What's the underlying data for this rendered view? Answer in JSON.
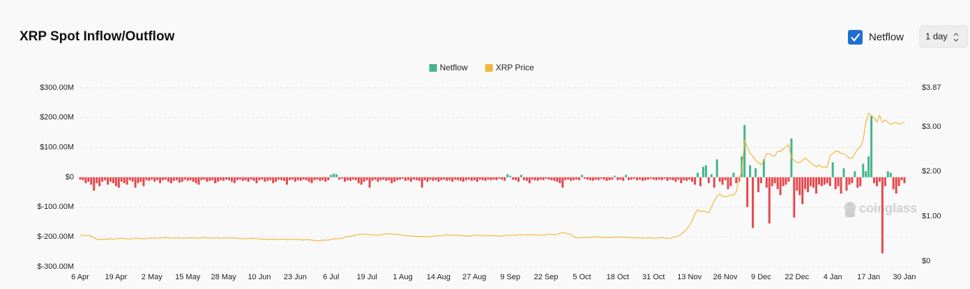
{
  "controls": {
    "checkbox_label": "Netflow",
    "interval": "1 day"
  },
  "watermark": "coinglass",
  "chart_data": {
    "type": "bar",
    "title": "XRP Spot Inflow/Outflow",
    "legend": "top",
    "grid": true,
    "categories": [
      "6 Apr",
      null,
      null,
      null,
      null,
      null,
      null,
      null,
      null,
      null,
      null,
      null,
      null,
      "19 Apr",
      null,
      null,
      null,
      null,
      null,
      null,
      null,
      null,
      null,
      null,
      null,
      null,
      "2 May",
      null,
      null,
      null,
      null,
      null,
      null,
      null,
      null,
      null,
      null,
      null,
      null,
      "15 May",
      null,
      null,
      null,
      null,
      null,
      null,
      null,
      null,
      null,
      null,
      null,
      null,
      "28 May",
      null,
      null,
      null,
      null,
      null,
      null,
      null,
      null,
      null,
      null,
      null,
      null,
      "10 Jun",
      null,
      null,
      null,
      null,
      null,
      null,
      null,
      null,
      null,
      null,
      null,
      null,
      "23 Jun",
      null,
      null,
      null,
      null,
      null,
      null,
      null,
      null,
      null,
      null,
      null,
      null,
      "6 Jul",
      null,
      null,
      null,
      null,
      null,
      null,
      null,
      null,
      null,
      null,
      null,
      null,
      "19 Jul",
      null,
      null,
      null,
      null,
      null,
      null,
      null,
      null,
      null,
      null,
      null,
      null,
      "1 Aug",
      null,
      null,
      null,
      null,
      null,
      null,
      null,
      null,
      null,
      null,
      null,
      null,
      "14 Aug",
      null,
      null,
      null,
      null,
      null,
      null,
      null,
      null,
      null,
      null,
      null,
      null,
      "27 Aug",
      null,
      null,
      null,
      null,
      null,
      null,
      null,
      null,
      null,
      null,
      null,
      null,
      "9 Sep",
      null,
      null,
      null,
      null,
      null,
      null,
      null,
      null,
      null,
      null,
      null,
      null,
      "22 Sep",
      null,
      null,
      null,
      null,
      null,
      null,
      null,
      null,
      null,
      null,
      null,
      null,
      "5 Oct",
      null,
      null,
      null,
      null,
      null,
      null,
      null,
      null,
      null,
      null,
      null,
      null,
      "18 Oct",
      null,
      null,
      null,
      null,
      null,
      null,
      null,
      null,
      null,
      null,
      null,
      null,
      "31 Oct",
      null,
      null,
      null,
      null,
      null,
      null,
      null,
      null,
      null,
      null,
      null,
      null,
      "13 Nov",
      null,
      null,
      null,
      null,
      null,
      null,
      null,
      null,
      null,
      null,
      null,
      null,
      "26 Nov",
      null,
      null,
      null,
      null,
      null,
      null,
      null,
      null,
      null,
      null,
      null,
      null,
      "9 Dec",
      null,
      null,
      null,
      null,
      null,
      null,
      null,
      null,
      null,
      null,
      null,
      null,
      "22 Dec",
      null,
      null,
      null,
      null,
      null,
      null,
      null,
      null,
      null,
      null,
      null,
      null,
      "4 Jan",
      null,
      null,
      null,
      null,
      null,
      null,
      null,
      null,
      null,
      null,
      null,
      null,
      "17 Jan",
      null,
      null,
      null,
      null,
      null,
      null,
      null,
      null,
      null,
      null,
      null,
      null,
      "30 Jan"
    ],
    "ylim": [
      -300,
      300
    ],
    "yticks": [
      {
        "value": -300,
        "label": "$-300.00M"
      },
      {
        "value": -200,
        "label": "$-200.00M"
      },
      {
        "value": -100,
        "label": "$-100.00M"
      },
      {
        "value": 0,
        "label": "$0"
      },
      {
        "value": 100,
        "label": "$100.00M"
      },
      {
        "value": 200,
        "label": "$200.00M"
      },
      {
        "value": 300,
        "label": "$300.00M"
      }
    ],
    "y2lim": [
      0,
      3.87
    ],
    "y2ticks": [
      {
        "value": 0,
        "label": "$0"
      },
      {
        "value": 1,
        "label": "$1.00"
      },
      {
        "value": 2,
        "label": "$2.00"
      },
      {
        "value": 3,
        "label": "$3.00"
      },
      {
        "value": 3.87,
        "label": "$3.87"
      }
    ],
    "series": [
      {
        "name": "Netflow",
        "type": "bar",
        "color": "#45b58b",
        "negative_color": "#e5484d",
        "values": [
          -8,
          -10,
          -20,
          -15,
          -25,
          -45,
          -20,
          -30,
          -15,
          -10,
          -25,
          -15,
          -20,
          -30,
          -35,
          -15,
          -20,
          -25,
          -10,
          -15,
          -35,
          -20,
          -15,
          -30,
          -10,
          -12,
          -8,
          -15,
          -10,
          -20,
          -10,
          -8,
          -15,
          -20,
          -12,
          -10,
          -18,
          -15,
          -8,
          -12,
          -10,
          -15,
          -20,
          -25,
          -10,
          -8,
          -15,
          -12,
          -10,
          -20,
          -15,
          -10,
          -12,
          -8,
          -10,
          -15,
          -20,
          -10,
          -8,
          -12,
          -10,
          -15,
          -8,
          -12,
          -20,
          -10,
          -8,
          -15,
          -12,
          -10,
          -20,
          -15,
          -8,
          -10,
          -12,
          -25,
          -10,
          -8,
          -15,
          -10,
          -12,
          -8,
          -10,
          -15,
          -20,
          -10,
          -8,
          -12,
          -10,
          -15,
          -10,
          8,
          12,
          10,
          -8,
          -5,
          -15,
          -10,
          -12,
          -8,
          -10,
          -20,
          -25,
          -15,
          -10,
          -35,
          -12,
          -8,
          -15,
          -10,
          -8,
          -12,
          -10,
          -20,
          -15,
          -10,
          -8,
          -5,
          -12,
          -10,
          -15,
          -8,
          -10,
          -12,
          -35,
          -10,
          -15,
          -8,
          -12,
          -10,
          -15,
          -10,
          -8,
          -12,
          -10,
          -15,
          -8,
          -10,
          -12,
          -15,
          -10,
          -8,
          -12,
          -10,
          -15,
          -8,
          -10,
          -12,
          -8,
          -10,
          -8,
          -10,
          -5,
          -8,
          -12,
          10,
          5,
          -8,
          -10,
          -15,
          8,
          -10,
          -12,
          -20,
          -8,
          -10,
          -12,
          -8,
          -10,
          -5,
          -8,
          -10,
          -12,
          -15,
          -20,
          -35,
          -10,
          -8,
          -12,
          -10,
          -8,
          -10,
          8,
          -5,
          -8,
          -10,
          -12,
          -8,
          -10,
          -5,
          -8,
          -12,
          -10,
          -8,
          5,
          -10,
          -8,
          -12,
          8,
          -10,
          -8,
          -5,
          -10,
          -8,
          -12,
          -10,
          -8,
          -5,
          -8,
          -10,
          -8,
          -10,
          -5,
          -12,
          -8,
          -10,
          -15,
          -8,
          -20,
          -10,
          -12,
          -8,
          -15,
          -25,
          15,
          -30,
          35,
          40,
          -20,
          10,
          -35,
          60,
          -15,
          -25,
          -10,
          -40,
          -30,
          15,
          -20,
          -15,
          70,
          175,
          -100,
          40,
          -170,
          30,
          -50,
          -20,
          60,
          -35,
          -155,
          -30,
          -20,
          -40,
          -60,
          -30,
          -25,
          -15,
          130,
          -135,
          -45,
          -60,
          -90,
          -40,
          -50,
          -30,
          -35,
          -55,
          -25,
          -30,
          -25,
          -20,
          -30,
          50,
          -40,
          -30,
          -55,
          30,
          -45,
          -25,
          -20,
          20,
          -35,
          -30,
          45,
          20,
          70,
          205,
          -20,
          -30,
          -15,
          -255,
          -30,
          20,
          15,
          -40,
          -55,
          -30,
          -10,
          -20
        ]
      },
      {
        "name": "XRP Price",
        "type": "line",
        "axis": "y2",
        "color": "#f0b93a",
        "values": [
          0.58,
          0.58,
          0.57,
          0.57,
          0.56,
          0.52,
          0.49,
          0.49,
          0.48,
          0.49,
          0.49,
          0.5,
          0.49,
          0.5,
          0.5,
          0.51,
          0.5,
          0.5,
          0.49,
          0.5,
          0.51,
          0.51,
          0.5,
          0.5,
          0.5,
          0.51,
          0.52,
          0.51,
          0.51,
          0.52,
          0.52,
          0.53,
          0.52,
          0.51,
          0.51,
          0.52,
          0.52,
          0.51,
          0.51,
          0.52,
          0.52,
          0.52,
          0.51,
          0.51,
          0.52,
          0.53,
          0.52,
          0.52,
          0.51,
          0.52,
          0.52,
          0.51,
          0.51,
          0.52,
          0.52,
          0.52,
          0.51,
          0.51,
          0.5,
          0.5,
          0.5,
          0.5,
          0.51,
          0.51,
          0.5,
          0.5,
          0.49,
          0.49,
          0.48,
          0.49,
          0.49,
          0.49,
          0.48,
          0.49,
          0.49,
          0.48,
          0.48,
          0.49,
          0.49,
          0.48,
          0.48,
          0.47,
          0.48,
          0.48,
          0.47,
          0.46,
          0.45,
          0.46,
          0.47,
          0.47,
          0.47,
          0.48,
          0.5,
          0.5,
          0.5,
          0.51,
          0.53,
          0.55,
          0.55,
          0.57,
          0.58,
          0.6,
          0.6,
          0.6,
          0.6,
          0.59,
          0.59,
          0.58,
          0.58,
          0.59,
          0.6,
          0.61,
          0.61,
          0.6,
          0.6,
          0.6,
          0.59,
          0.58,
          0.57,
          0.57,
          0.56,
          0.56,
          0.55,
          0.55,
          0.55,
          0.55,
          0.54,
          0.55,
          0.56,
          0.56,
          0.57,
          0.57,
          0.58,
          0.59,
          0.58,
          0.58,
          0.58,
          0.58,
          0.57,
          0.57,
          0.56,
          0.56,
          0.57,
          0.58,
          0.58,
          0.58,
          0.57,
          0.57,
          0.57,
          0.57,
          0.57,
          0.57,
          0.56,
          0.56,
          0.57,
          0.58,
          0.58,
          0.58,
          0.58,
          0.59,
          0.59,
          0.59,
          0.58,
          0.59,
          0.59,
          0.59,
          0.58,
          0.58,
          0.59,
          0.59,
          0.6,
          0.6,
          0.59,
          0.6,
          0.62,
          0.64,
          0.63,
          0.61,
          0.6,
          0.54,
          0.52,
          0.52,
          0.53,
          0.53,
          0.53,
          0.53,
          0.53,
          0.54,
          0.54,
          0.53,
          0.53,
          0.53,
          0.53,
          0.53,
          0.54,
          0.54,
          0.54,
          0.53,
          0.53,
          0.53,
          0.52,
          0.52,
          0.52,
          0.52,
          0.52,
          0.51,
          0.52,
          0.52,
          0.51,
          0.51,
          0.52,
          0.53,
          0.51,
          0.51,
          0.51,
          0.53,
          0.55,
          0.56,
          0.6,
          0.65,
          0.72,
          0.8,
          0.9,
          1.05,
          1.15,
          1.1,
          1.12,
          1.1,
          1.08,
          1.2,
          1.35,
          1.45,
          1.5,
          1.45,
          1.44,
          1.45,
          1.48,
          1.47,
          1.55,
          1.85,
          2.0,
          2.7,
          2.55,
          2.4,
          2.35,
          2.25,
          2.2,
          2.15,
          2.25,
          2.4,
          2.4,
          2.35,
          2.35,
          2.45,
          2.45,
          2.5,
          2.55,
          2.6,
          2.3,
          2.25,
          2.2,
          2.2,
          2.25,
          2.3,
          2.25,
          2.2,
          2.15,
          2.1,
          2.15,
          2.1,
          2.1,
          2.1,
          2.35,
          2.4,
          2.45,
          2.45,
          2.4,
          2.4,
          2.35,
          2.3,
          2.3,
          2.4,
          2.5,
          2.55,
          2.7,
          3.1,
          3.3,
          3.25,
          3.2,
          3.1,
          3.25,
          3.1,
          3.15,
          3.1,
          3.05,
          3.08,
          3.1,
          3.05,
          3.08,
          3.1
        ]
      }
    ]
  }
}
